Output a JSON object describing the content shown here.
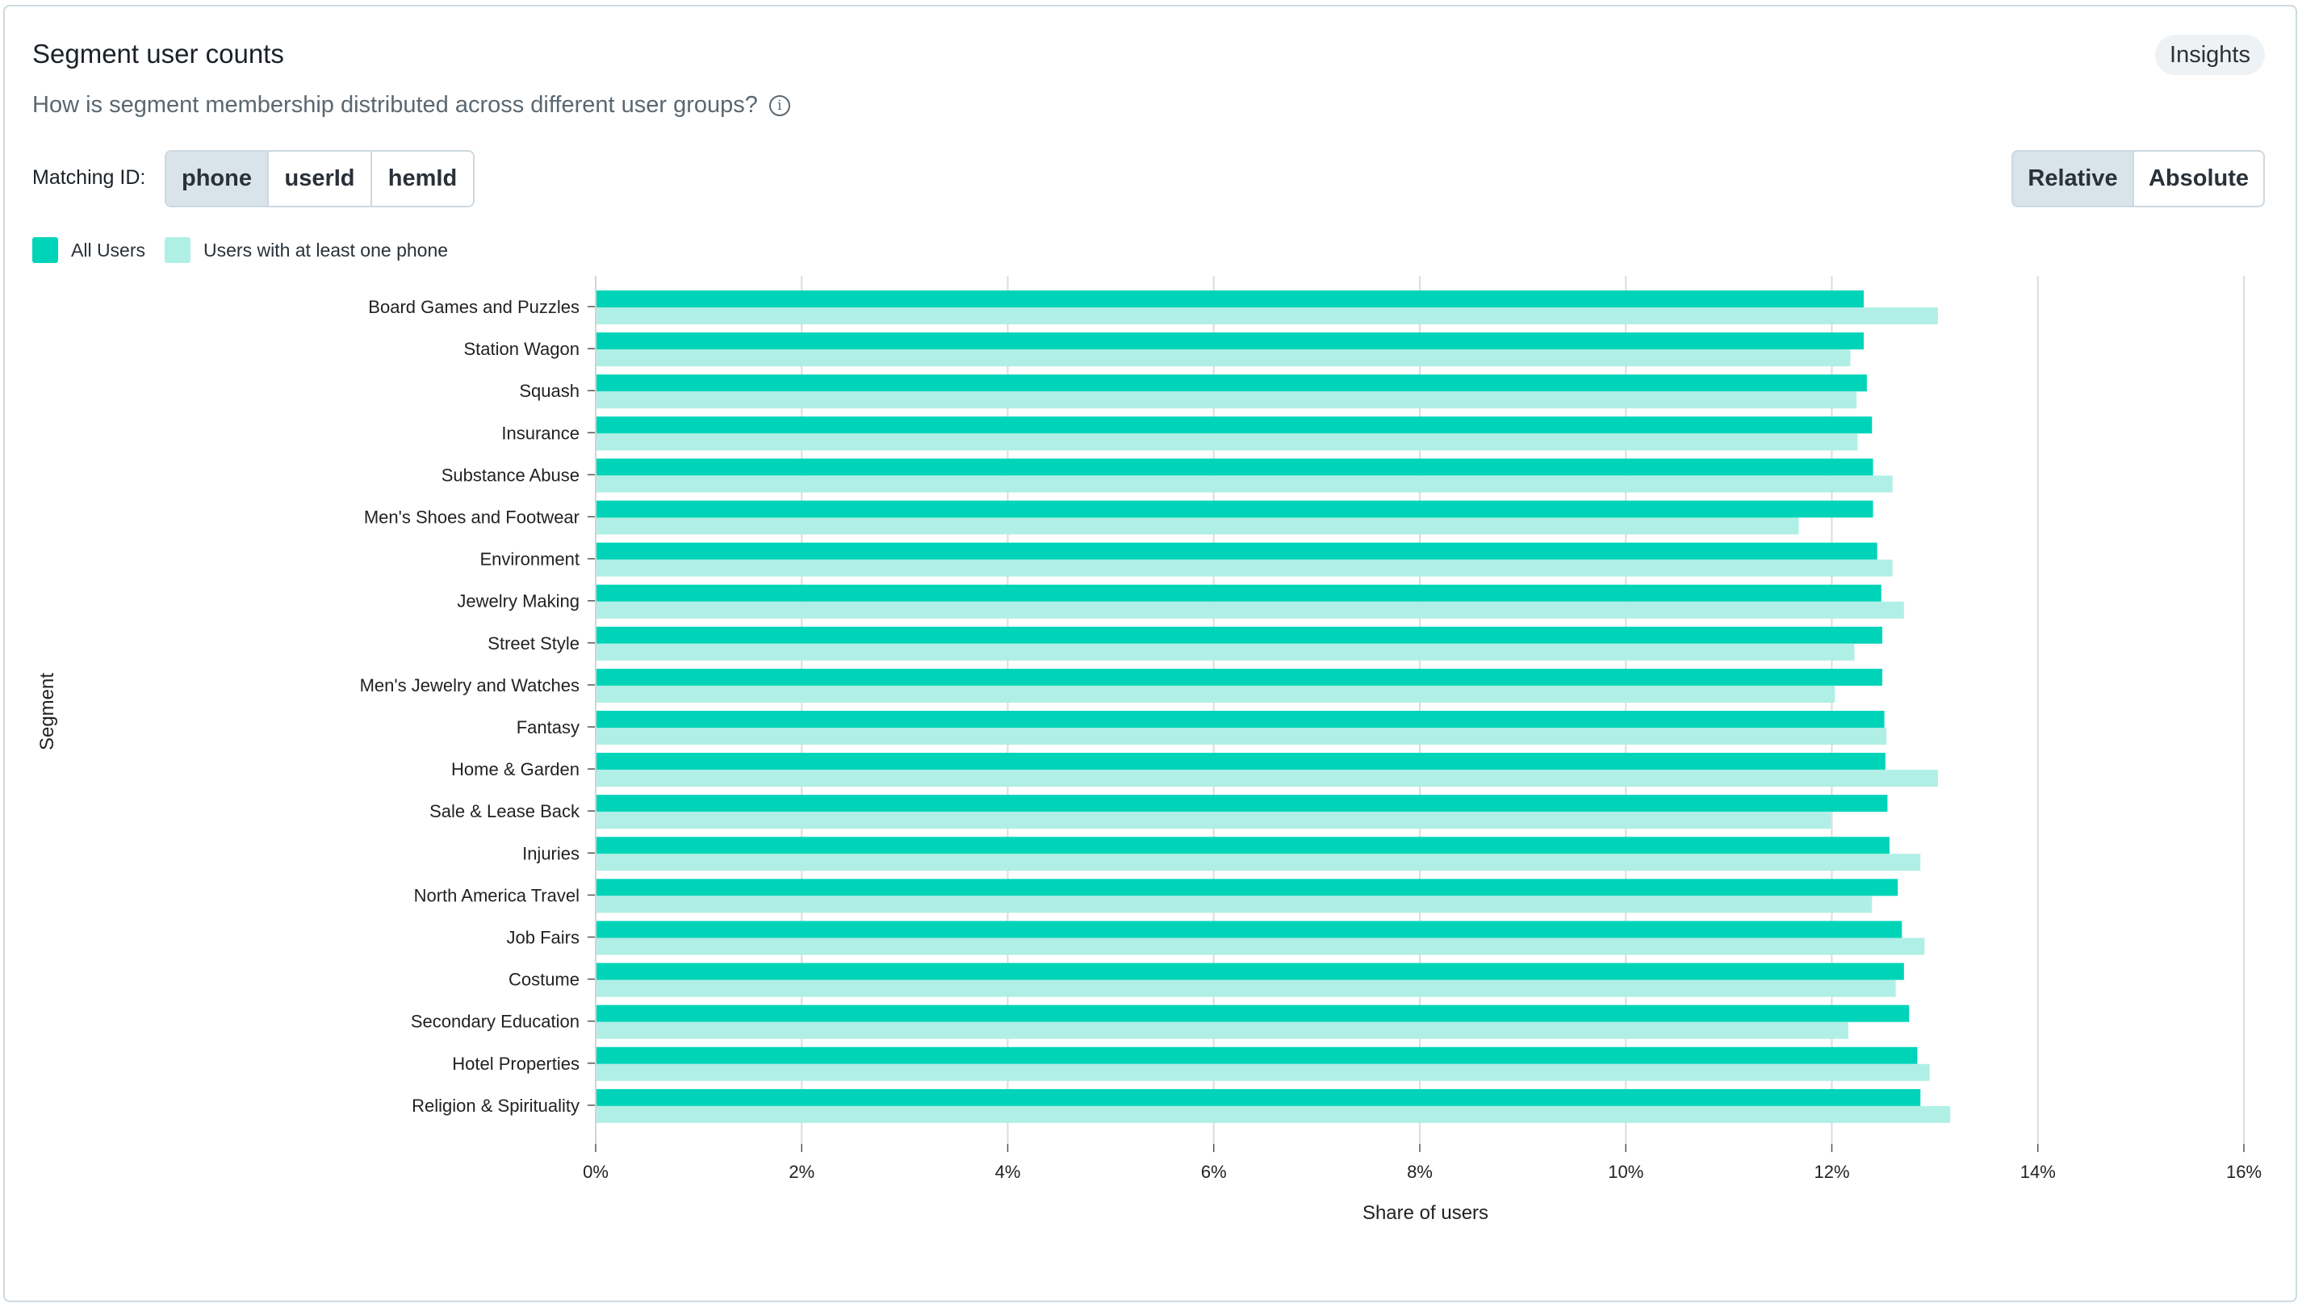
{
  "header": {
    "title": "Segment user counts",
    "insights_label": "Insights",
    "subtitle": "How is segment membership distributed across different user groups?",
    "info_icon": "info-icon"
  },
  "controls": {
    "matching_label": "Matching ID:",
    "matching_options": [
      "phone",
      "userId",
      "hemId"
    ],
    "matching_selected": "phone",
    "mode_options": [
      "Relative",
      "Absolute"
    ],
    "mode_selected": "Relative"
  },
  "legend": {
    "items": [
      {
        "label": "All Users",
        "color": "#00d4b8"
      },
      {
        "label": "Users with at least one phone",
        "color": "#b0efe5"
      }
    ]
  },
  "chart_data": {
    "type": "bar",
    "orientation": "horizontal",
    "xlabel": "Share of users",
    "ylabel": "Segment",
    "xlim": [
      0,
      16
    ],
    "xticks": [
      "0%",
      "2%",
      "4%",
      "6%",
      "8%",
      "10%",
      "12%",
      "14%",
      "16%"
    ],
    "grid": "vertical",
    "categories": [
      "Board Games and Puzzles",
      "Station Wagon",
      "Squash",
      "Insurance",
      "Substance Abuse",
      "Men's Shoes and Footwear",
      "Environment",
      "Jewelry Making",
      "Street Style",
      "Men's Jewelry and Watches",
      "Fantasy",
      "Home & Garden",
      "Sale & Lease Back",
      "Injuries",
      "North America Travel",
      "Job Fairs",
      "Costume",
      "Secondary Education",
      "Hotel Properties",
      "Religion & Spirituality"
    ],
    "series": [
      {
        "name": "All Users",
        "color": "#00d4b8",
        "values": [
          12.31,
          12.31,
          12.34,
          12.39,
          12.4,
          12.4,
          12.44,
          12.48,
          12.49,
          12.49,
          12.51,
          12.52,
          12.54,
          12.56,
          12.64,
          12.68,
          12.7,
          12.75,
          12.83,
          12.86
        ]
      },
      {
        "name": "Users with at least one phone",
        "color": "#b0efe5",
        "values": [
          13.03,
          12.18,
          12.24,
          12.25,
          12.59,
          11.68,
          12.59,
          12.7,
          12.22,
          12.03,
          12.53,
          13.03,
          11.99,
          12.86,
          12.39,
          12.9,
          12.62,
          12.16,
          12.95,
          13.15
        ]
      }
    ]
  }
}
